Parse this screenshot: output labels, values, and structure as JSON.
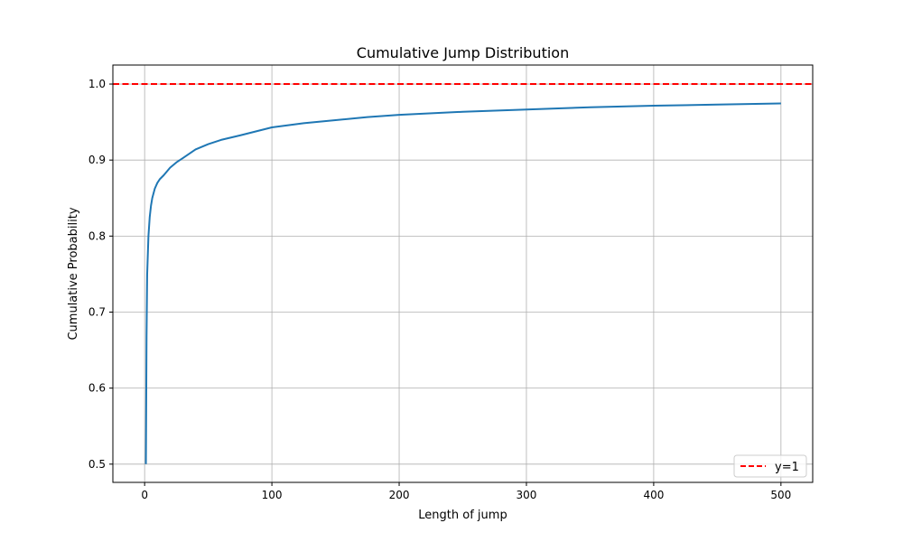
{
  "chart_data": {
    "type": "line",
    "title": "Cumulative Jump Distribution",
    "xlabel": "Length of jump",
    "ylabel": "Cumulative Probability",
    "xlim": [
      -24.95,
      524.95
    ],
    "ylim": [
      0.476,
      1.025
    ],
    "xticks": [
      0,
      100,
      200,
      300,
      400,
      500
    ],
    "yticks": [
      0.5,
      0.6,
      0.7,
      0.8,
      0.9,
      1.0
    ],
    "xtick_labels": [
      "0",
      "100",
      "200",
      "300",
      "400",
      "500"
    ],
    "ytick_labels": [
      "0.5",
      "0.6",
      "0.7",
      "0.8",
      "0.9",
      "1.0"
    ],
    "grid": true,
    "legend_position": "lower-right",
    "series": [
      {
        "color": "#1f77b4",
        "x": [
          1,
          1.5,
          2,
          3,
          4,
          5,
          6,
          8,
          10,
          12,
          15,
          20,
          25,
          30,
          40,
          50,
          60,
          75,
          100,
          125,
          150,
          175,
          200,
          250,
          300,
          350,
          400,
          450,
          500
        ],
        "y": [
          0.5,
          0.667,
          0.75,
          0.8,
          0.825,
          0.84,
          0.85,
          0.8625,
          0.87,
          0.875,
          0.88,
          0.89,
          0.897,
          0.9025,
          0.914,
          0.921,
          0.9265,
          0.9325,
          0.943,
          0.9485,
          0.9525,
          0.9565,
          0.9595,
          0.9635,
          0.9665,
          0.9695,
          0.9715,
          0.973,
          0.9745
        ]
      },
      {
        "name": "y=1",
        "color": "#ff0000",
        "style": "dashed",
        "y": 1.0
      }
    ]
  }
}
